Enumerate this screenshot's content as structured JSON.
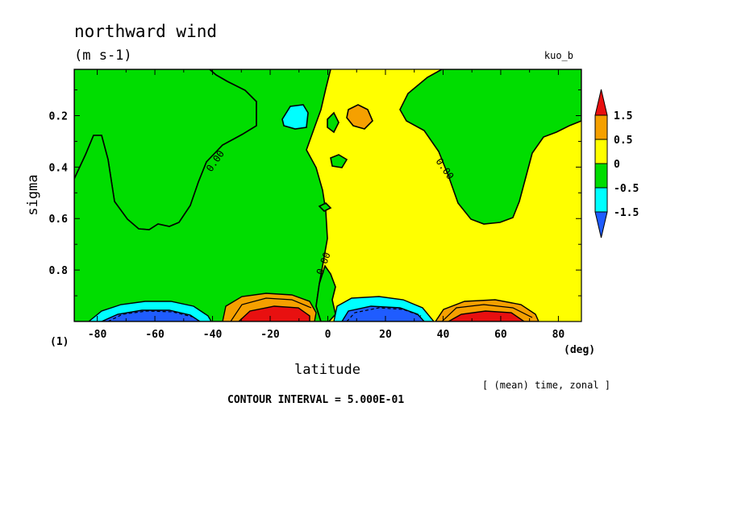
{
  "title": "northward wind",
  "units": "(m s-1)",
  "run_label": "kuo_b",
  "panel_label": "(1)",
  "x_unit_label": "(deg)",
  "subtitle_right": "[ (mean) time, zonal ]",
  "contour_interval_text": "CONTOUR INTERVAL = 5.000E-01",
  "contour_labels": [
    "0.00",
    "0.00",
    "0.00"
  ],
  "colors": {
    "lt_neg1p5": "#1f5cff",
    "neg1p5_to_neg0p5": "#00ffff",
    "neg0p5_to_0": "#00dd00",
    "0_to_0p5": "#ffff00",
    "0p5_to_1p5": "#f5a000",
    "gt_1p5": "#e81010"
  },
  "chart_data": {
    "type": "heatmap",
    "title": "northward wind",
    "units": "m s-1",
    "xlabel": "latitude",
    "ylabel": "sigma",
    "xlim": [
      -88,
      88
    ],
    "ylim": [
      1.0,
      0.02
    ],
    "x_ticks": [
      -80,
      -60,
      -40,
      -20,
      0,
      20,
      40,
      60,
      80
    ],
    "x_tick_labels": [
      "-80",
      "-60",
      "-40",
      "-20",
      "0",
      "20",
      "40",
      "60",
      "80"
    ],
    "y_ticks": [
      0.2,
      0.4,
      0.6,
      0.8
    ],
    "y_tick_labels": [
      "0.2",
      "0.4",
      "0.6",
      "0.8"
    ],
    "contour_interval": 0.5,
    "colorbar": {
      "levels": [
        -1.5,
        -0.5,
        0,
        0.5,
        1.5
      ],
      "level_labels": [
        "-1.5",
        "-0.5",
        "0",
        "0.5",
        "1.5"
      ],
      "colors": [
        "#1f5cff",
        "#00ffff",
        "#00dd00",
        "#ffff00",
        "#f5a000",
        "#e81010"
      ]
    },
    "features": [
      {
        "sign": "negative",
        "lat_center": -57,
        "sigma_center": 0.99,
        "min_value": -2.0
      },
      {
        "sign": "positive",
        "lat_center": -18,
        "sigma_center": 0.98,
        "max_value": 2.0
      },
      {
        "sign": "negative",
        "lat_center": 13,
        "sigma_center": 0.98,
        "min_value": -2.0
      },
      {
        "sign": "positive",
        "lat_center": 55,
        "sigma_center": 0.99,
        "max_value": 2.0
      }
    ]
  }
}
